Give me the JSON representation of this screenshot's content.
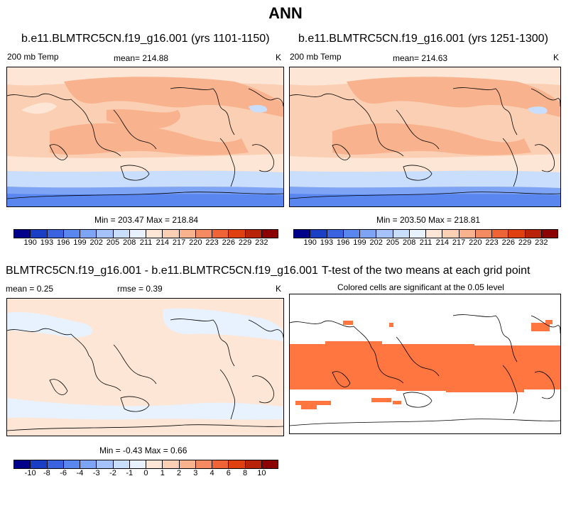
{
  "figure_title": "ANN",
  "colors": {
    "abs_scale": [
      "#00008b",
      "#1a3fc4",
      "#3b63e0",
      "#5a86f0",
      "#7ea4f5",
      "#a5c3fa",
      "#c9defc",
      "#e8f1fe",
      "#fde6d6",
      "#fbcfb3",
      "#f8b28e",
      "#f48a62",
      "#ee6436",
      "#e04010",
      "#b8230a",
      "#8b0000"
    ],
    "diff_scale": [
      "#00008b",
      "#1a3fc4",
      "#3b63e0",
      "#5a86f0",
      "#7ea4f5",
      "#a5c3fa",
      "#c9defc",
      "#e8f1fe",
      "#fde6d6",
      "#fbcfb3",
      "#f8b28e",
      "#f48a62",
      "#ee6436",
      "#e04010",
      "#b8230a",
      "#8b0000"
    ],
    "sig": "#ff7640"
  },
  "panels": {
    "p1": {
      "title": "b.e11.BLMTRC5CN.f19_g16.001 (yrs 1101-1150)",
      "left_label": "200 mb Temp",
      "mean_label": "mean= 214.88",
      "unit": "K",
      "minmax": "Min = 203.47 Max = 218.84",
      "ticks": [
        "190",
        "193",
        "196",
        "199",
        "202",
        "205",
        "208",
        "211",
        "214",
        "217",
        "220",
        "223",
        "226",
        "229",
        "232"
      ]
    },
    "p2": {
      "title": "b.e11.BLMTRC5CN.f19_g16.001 (yrs 1251-1300)",
      "left_label": "200 mb Temp",
      "mean_label": "mean= 214.63",
      "unit": "K",
      "minmax": "Min = 203.50 Max = 218.81",
      "ticks": [
        "190",
        "193",
        "196",
        "199",
        "202",
        "205",
        "208",
        "211",
        "214",
        "217",
        "220",
        "223",
        "226",
        "229",
        "232"
      ]
    },
    "p3": {
      "title": "BLMTRC5CN.f19_g16.001 - b.e11.BLMTRC5CN.f19_g16.001",
      "mean_label": "mean =   0.25",
      "rmse_label": "rmse =   0.39",
      "unit": "K",
      "minmax": "Min =  -0.43 Max =   0.66",
      "ticks": [
        "-10",
        "-8",
        "-6",
        "-4",
        "-3",
        "-2",
        "-1",
        "0",
        "1",
        "2",
        "3",
        "4",
        "6",
        "8",
        "10"
      ]
    },
    "p4": {
      "title": "T-test of the two means at each grid point",
      "subtitle": "Colored cells are significant at the 0.05 level"
    }
  }
}
